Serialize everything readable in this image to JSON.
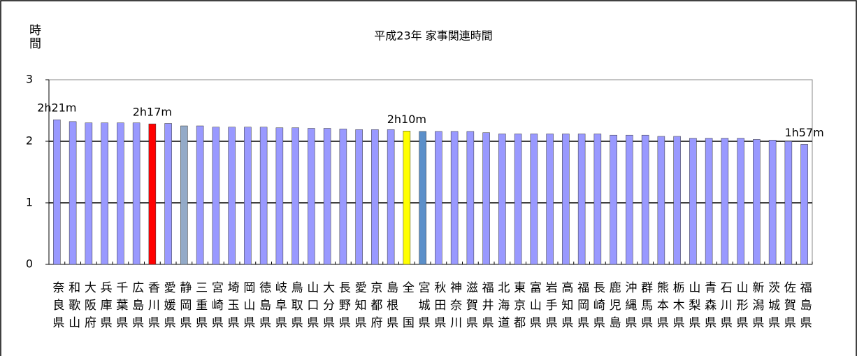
{
  "chart_data": {
    "type": "bar",
    "title": "平成23年 家事関連時間",
    "y_label": "時間",
    "categories": [
      "奈良県",
      "和歌山",
      "大阪府",
      "兵庫県",
      "千葉県",
      "広島県",
      "香川県",
      "愛媛県",
      "静岡県",
      "三重県",
      "宮崎県",
      "埼玉県",
      "岡山県",
      "徳島県",
      "岐阜県",
      "鳥取県",
      "山口県",
      "大分県",
      "長野県",
      "愛知県",
      "京都府",
      "島根県",
      "全　国",
      "宮城県",
      "秋田県",
      "神奈川",
      "滋賀県",
      "福井県",
      "北海道",
      "東京都",
      "富山県",
      "岩手県",
      "高知県",
      "福岡県",
      "長崎県",
      "鹿児島",
      "沖縄県",
      "群馬県",
      "熊本県",
      "栃木県",
      "山梨県",
      "青森県",
      "石川県",
      "山形県",
      "新潟県",
      "茨城県",
      "佐賀県",
      "福島県"
    ],
    "values": [
      2.35,
      2.32,
      2.3,
      2.3,
      2.3,
      2.3,
      2.283,
      2.29,
      2.25,
      2.25,
      2.23,
      2.23,
      2.23,
      2.23,
      2.22,
      2.22,
      2.21,
      2.21,
      2.2,
      2.19,
      2.19,
      2.19,
      2.167,
      2.16,
      2.16,
      2.16,
      2.16,
      2.14,
      2.12,
      2.12,
      2.12,
      2.12,
      2.12,
      2.12,
      2.12,
      2.1,
      2.1,
      2.1,
      2.08,
      2.08,
      2.05,
      2.05,
      2.05,
      2.05,
      2.03,
      2.02,
      2.0,
      1.95
    ],
    "value_labels": [
      "2h21m",
      null,
      null,
      null,
      null,
      null,
      "2h17m",
      null,
      null,
      null,
      null,
      null,
      null,
      null,
      null,
      null,
      null,
      null,
      null,
      null,
      null,
      null,
      "2h10m",
      null,
      null,
      null,
      null,
      null,
      null,
      null,
      null,
      null,
      null,
      null,
      null,
      null,
      null,
      null,
      null,
      null,
      null,
      null,
      null,
      null,
      null,
      null,
      null,
      "1h57m"
    ],
    "color": "#9999ff",
    "colors": [
      "#9999ff",
      "#9999ff",
      "#9999ff",
      "#9999ff",
      "#9999ff",
      "#9999ff",
      "#ff0000",
      "#9999ff",
      "#93aac8",
      "#9999ff",
      "#9999ff",
      "#9999ff",
      "#9999ff",
      "#9999ff",
      "#9999ff",
      "#9999ff",
      "#9999ff",
      "#9999ff",
      "#9999ff",
      "#9999ff",
      "#9999ff",
      "#9999ff",
      "#ffff00",
      "#5b8fc9",
      "#9999ff",
      "#9999ff",
      "#9999ff",
      "#9999ff",
      "#9999ff",
      "#9999ff",
      "#9999ff",
      "#9999ff",
      "#9999ff",
      "#9999ff",
      "#9999ff",
      "#9999ff",
      "#9999ff",
      "#9999ff",
      "#9999ff",
      "#9999ff",
      "#9999ff",
      "#9999ff",
      "#9999ff",
      "#9999ff",
      "#9999ff",
      "#9999ff",
      "#9999ff",
      "#9999ff"
    ],
    "ylim": [
      0,
      3
    ],
    "yticks": [
      0,
      1,
      2,
      3
    ],
    "grid": true
  }
}
